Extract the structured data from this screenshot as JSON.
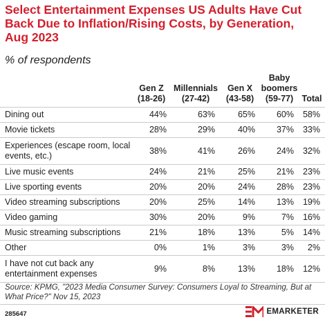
{
  "title": "Select Entertainment Expenses US Adults Have Cut Back Due to Inflation/Rising Costs, by Generation, Aug 2023",
  "subtitle": "% of respondents",
  "source": "Source: KPMG, \"2023 Media Consumer Survey: Consumers Loyal to Streaming, But at What Price?\" Nov 15, 2023",
  "footer_code": "285647",
  "brand": "EMARKETER",
  "brand_color": "#d31f2c",
  "chart_data": {
    "type": "table",
    "title": "Select Entertainment Expenses US Adults Have Cut Back Due to Inflation/Rising Costs, by Generation, Aug 2023",
    "subtitle": "% of respondents",
    "columns": [
      {
        "line1": "Gen Z",
        "line2": "(18-26)"
      },
      {
        "line1": "Millennials",
        "line2": "(27-42)"
      },
      {
        "line1": "Gen X",
        "line2": "(43-58)"
      },
      {
        "line1": "Baby boomers",
        "line2": "(59-77)"
      },
      {
        "line1": "Total",
        "line2": ""
      }
    ],
    "rows": [
      {
        "label": "Dining out",
        "values": [
          "44%",
          "63%",
          "65%",
          "60%",
          "58%"
        ]
      },
      {
        "label": "Movie tickets",
        "values": [
          "28%",
          "29%",
          "40%",
          "37%",
          "33%"
        ]
      },
      {
        "label": "Experiences (escape room, local events, etc.)",
        "values": [
          "38%",
          "41%",
          "26%",
          "24%",
          "32%"
        ]
      },
      {
        "label": "Live music events",
        "values": [
          "24%",
          "21%",
          "25%",
          "21%",
          "23%"
        ]
      },
      {
        "label": "Live sporting events",
        "values": [
          "20%",
          "20%",
          "24%",
          "28%",
          "23%"
        ]
      },
      {
        "label": "Video streaming subscriptions",
        "values": [
          "20%",
          "25%",
          "14%",
          "13%",
          "19%"
        ]
      },
      {
        "label": "Video gaming",
        "values": [
          "30%",
          "20%",
          "9%",
          "7%",
          "16%"
        ]
      },
      {
        "label": "Music streaming subscriptions",
        "values": [
          "21%",
          "18%",
          "13%",
          "5%",
          "14%"
        ]
      },
      {
        "label": "Other",
        "values": [
          "0%",
          "1%",
          "3%",
          "3%",
          "2%"
        ]
      },
      {
        "label": "I have not cut back any entertainment expenses",
        "values": [
          "9%",
          "8%",
          "13%",
          "18%",
          "12%"
        ]
      }
    ]
  }
}
